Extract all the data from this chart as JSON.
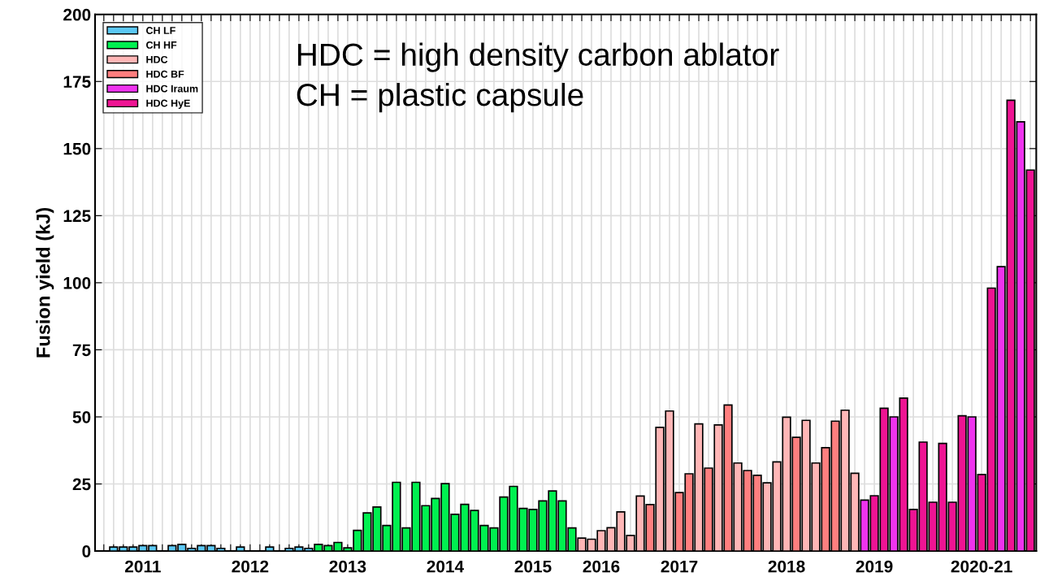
{
  "chart_data": {
    "type": "bar",
    "ylabel": "Fusion yield (kJ)",
    "categories": [
      null,
      null,
      null,
      null,
      "2011",
      null,
      null,
      null,
      null,
      null,
      null,
      null,
      null,
      null,
      null,
      "2012",
      null,
      null,
      null,
      null,
      null,
      null,
      null,
      null,
      null,
      "2013",
      null,
      null,
      null,
      null,
      null,
      null,
      null,
      null,
      null,
      "2014",
      null,
      null,
      null,
      null,
      null,
      null,
      null,
      null,
      "2015",
      null,
      null,
      null,
      null,
      null,
      null,
      "2016",
      null,
      null,
      null,
      null,
      null,
      null,
      null,
      "2017",
      null,
      null,
      null,
      null,
      null,
      null,
      null,
      null,
      null,
      null,
      "2018",
      null,
      null,
      null,
      null,
      null,
      null,
      null,
      null,
      "2019",
      null,
      null,
      null,
      null,
      null,
      null,
      null,
      null,
      null,
      null,
      "2020-21",
      null,
      null,
      null,
      null,
      null
    ],
    "series": [
      {
        "name": "CH LF",
        "color": "#5bc8f5",
        "values": [
          null,
          1.5,
          1.5,
          1.5,
          2,
          2,
          null,
          2,
          2.5,
          1,
          2,
          2,
          1,
          null,
          1.5,
          null,
          null,
          1.5,
          null,
          1,
          1.5,
          1,
          null,
          null,
          null,
          null,
          null,
          null,
          null,
          null,
          null,
          null,
          null,
          null,
          null,
          null,
          null,
          null,
          null,
          null,
          null,
          null,
          null,
          null,
          null,
          null,
          null,
          null,
          null,
          null,
          null,
          null,
          null,
          null,
          null,
          null,
          null,
          null,
          null,
          null,
          null,
          null,
          null,
          null,
          null,
          null,
          null,
          null,
          null,
          null,
          null,
          null,
          null,
          null,
          null,
          null,
          null,
          null,
          null,
          null,
          null,
          null,
          null,
          null,
          null,
          null,
          null,
          null,
          null,
          null,
          null,
          null,
          null,
          null,
          null,
          null
        ]
      },
      {
        "name": "CH HF",
        "color": "#00f050",
        "values": [
          null,
          null,
          null,
          null,
          null,
          null,
          null,
          null,
          null,
          null,
          null,
          null,
          null,
          null,
          null,
          null,
          null,
          null,
          null,
          null,
          null,
          null,
          2.5,
          2,
          3.2,
          1.2,
          7.7,
          14.2,
          16.4,
          9.5,
          25.6,
          8.6,
          25.6,
          16.9,
          19.6,
          25.1,
          13.7,
          17.4,
          15.1,
          9.5,
          8.6,
          20.1,
          24.1,
          15.9,
          15.5,
          18.7,
          22.4,
          18.7,
          8.6,
          null,
          null,
          null,
          null,
          null,
          null,
          null,
          null,
          null,
          null,
          null,
          null,
          null,
          null,
          null,
          null,
          null,
          null,
          null,
          null,
          null,
          null,
          null,
          null,
          null,
          null,
          null,
          null,
          null,
          null,
          null,
          null,
          null,
          null,
          null,
          null,
          null,
          null,
          null,
          null,
          null,
          null,
          null,
          null,
          null,
          null,
          null
        ]
      },
      {
        "name": "HDC",
        "color": "#ffb6b6",
        "values": [
          null,
          null,
          null,
          null,
          null,
          null,
          null,
          null,
          null,
          null,
          null,
          null,
          null,
          null,
          null,
          null,
          null,
          null,
          null,
          null,
          null,
          null,
          null,
          null,
          null,
          null,
          null,
          null,
          null,
          null,
          null,
          null,
          null,
          null,
          null,
          null,
          null,
          null,
          null,
          null,
          null,
          null,
          null,
          null,
          null,
          null,
          null,
          null,
          null,
          4.8,
          4.4,
          7.6,
          8.7,
          14.6,
          5.8,
          20.5,
          null,
          46.1,
          52.2,
          null,
          null,
          47.4,
          null,
          47.0,
          null,
          32.8,
          null,
          null,
          25.4,
          33.2,
          49.9,
          null,
          48.7,
          32.8,
          null,
          null,
          52.5,
          29,
          null,
          null,
          null,
          null,
          null,
          null,
          null,
          null,
          null,
          null,
          null,
          null,
          null,
          null,
          null,
          null,
          null,
          null
        ]
      },
      {
        "name": "HDC BF",
        "color": "#ff7f7f",
        "values": [
          null,
          null,
          null,
          null,
          null,
          null,
          null,
          null,
          null,
          null,
          null,
          null,
          null,
          null,
          null,
          null,
          null,
          null,
          null,
          null,
          null,
          null,
          null,
          null,
          null,
          null,
          null,
          null,
          null,
          null,
          null,
          null,
          null,
          null,
          null,
          null,
          null,
          null,
          null,
          null,
          null,
          null,
          null,
          null,
          null,
          null,
          null,
          null,
          null,
          null,
          null,
          null,
          null,
          null,
          null,
          null,
          17.3,
          null,
          null,
          21.8,
          28.8,
          null,
          30.9,
          null,
          54.4,
          null,
          30.0,
          28.2,
          null,
          null,
          null,
          42.4,
          null,
          null,
          38.5,
          48.4,
          null,
          null,
          null,
          null,
          null,
          null,
          null,
          null,
          null,
          null,
          null,
          null,
          null,
          null,
          null,
          null,
          null,
          null,
          null,
          null
        ]
      },
      {
        "name": "HDC Iraum",
        "color": "#ee33ee",
        "values": [
          null,
          null,
          null,
          null,
          null,
          null,
          null,
          null,
          null,
          null,
          null,
          null,
          null,
          null,
          null,
          null,
          null,
          null,
          null,
          null,
          null,
          null,
          null,
          null,
          null,
          null,
          null,
          null,
          null,
          null,
          null,
          null,
          null,
          null,
          null,
          null,
          null,
          null,
          null,
          null,
          null,
          null,
          null,
          null,
          null,
          null,
          null,
          null,
          null,
          null,
          null,
          null,
          null,
          null,
          null,
          null,
          null,
          null,
          null,
          null,
          null,
          null,
          null,
          null,
          null,
          null,
          null,
          null,
          null,
          null,
          null,
          null,
          null,
          null,
          null,
          null,
          null,
          null,
          19,
          null,
          null,
          50,
          null,
          null,
          null,
          null,
          null,
          null,
          null,
          50,
          null,
          null,
          106,
          null,
          160,
          null
        ]
      },
      {
        "name": "HDC HyE",
        "color": "#ee1493",
        "values": [
          null,
          null,
          null,
          null,
          null,
          null,
          null,
          null,
          null,
          null,
          null,
          null,
          null,
          null,
          null,
          null,
          null,
          null,
          null,
          null,
          null,
          null,
          null,
          null,
          null,
          null,
          null,
          null,
          null,
          null,
          null,
          null,
          null,
          null,
          null,
          null,
          null,
          null,
          null,
          null,
          null,
          null,
          null,
          null,
          null,
          null,
          null,
          null,
          null,
          null,
          null,
          null,
          null,
          null,
          null,
          null,
          null,
          null,
          null,
          null,
          null,
          null,
          null,
          null,
          null,
          null,
          null,
          null,
          null,
          null,
          null,
          null,
          null,
          null,
          null,
          null,
          null,
          null,
          null,
          20.6,
          53.2,
          null,
          57,
          15.5,
          40.6,
          18.2,
          40.1,
          18.2,
          50.4,
          null,
          28.5,
          98,
          null,
          168,
          null,
          142
        ]
      }
    ],
    "ylim": [
      0,
      200
    ],
    "yticks": [
      0,
      25,
      50,
      75,
      100,
      125,
      150,
      175,
      200
    ],
    "grid": true,
    "legend": "top left",
    "annotations": [
      "HDC = high density carbon ablator",
      "CH = plastic capsule"
    ]
  }
}
